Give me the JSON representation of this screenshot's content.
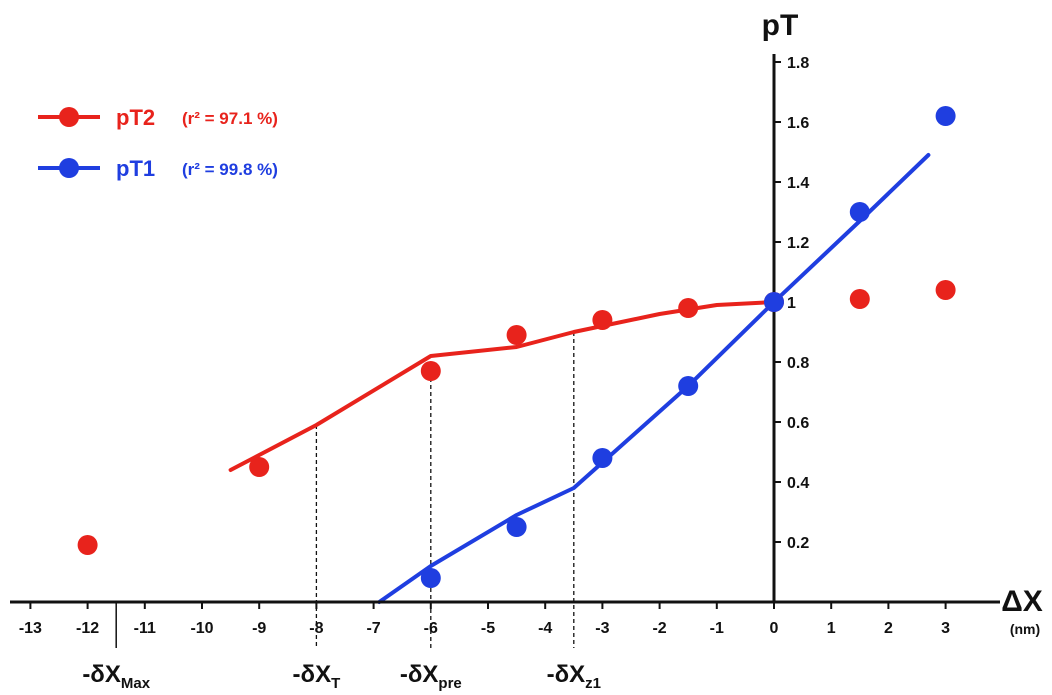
{
  "chart_data": {
    "type": "line",
    "xlabel": "ΔX",
    "xunit": "(nm)",
    "ylabel": "pT",
    "xlim": [
      -13.5,
      3.5
    ],
    "ylim": [
      0,
      1.8
    ],
    "x_ticks": [
      -13,
      -12,
      -11,
      -10,
      -9,
      -8,
      -7,
      -6,
      -5,
      -4,
      -3,
      -2,
      -1,
      0,
      1,
      2,
      3
    ],
    "x_tick_labels": [
      "-13",
      "-12",
      "-11",
      "-10",
      "-9",
      "-8",
      "-7",
      "-6",
      "-5",
      "-4",
      "-3",
      "-2",
      "-1",
      "0",
      "1",
      "2",
      "3"
    ],
    "y_ticks": [
      0.2,
      0.4,
      0.6,
      0.8,
      1.0,
      1.2,
      1.4,
      1.6,
      1.8
    ],
    "y_tick_labels": [
      "0.2",
      "0.4",
      "0.6",
      "0.8",
      "1",
      "1.2",
      "1.4",
      "1.6",
      "1.8"
    ],
    "grid": false,
    "legend_position": "top-left",
    "series": [
      {
        "name": "pT2",
        "r2_label": "(r² = 97.1 %)",
        "color": "#e8231c",
        "points": [
          [
            -12,
            0.19
          ],
          [
            -9,
            0.45
          ],
          [
            -6,
            0.77
          ],
          [
            -4.5,
            0.89
          ],
          [
            -3,
            0.94
          ],
          [
            -1.5,
            0.98
          ],
          [
            0,
            1.0
          ],
          [
            1.5,
            1.01
          ],
          [
            3,
            1.04
          ]
        ],
        "fit": [
          [
            -9.5,
            0.44
          ],
          [
            -8,
            0.59
          ],
          [
            -6,
            0.82
          ],
          [
            -4.5,
            0.85
          ],
          [
            -3.5,
            0.9
          ],
          [
            -2,
            0.96
          ],
          [
            -1,
            0.99
          ],
          [
            0,
            1.0
          ]
        ]
      },
      {
        "name": "pT1",
        "r2_label": "(r² = 99.8 %)",
        "color": "#1f3ee0",
        "points": [
          [
            -6,
            0.08
          ],
          [
            -4.5,
            0.25
          ],
          [
            -3,
            0.48
          ],
          [
            -1.5,
            0.72
          ],
          [
            0,
            1.0
          ],
          [
            1.5,
            1.3
          ],
          [
            3,
            1.62
          ]
        ],
        "fit": [
          [
            -6.9,
            0.0
          ],
          [
            -6,
            0.12
          ],
          [
            -4.5,
            0.29
          ],
          [
            -3.5,
            0.38
          ],
          [
            -2.5,
            0.55
          ],
          [
            -1.5,
            0.72
          ],
          [
            0,
            1.0
          ],
          [
            1.5,
            1.27
          ],
          [
            2.7,
            1.49
          ]
        ]
      }
    ],
    "markers": [
      {
        "main": "-δX",
        "sub": "Max",
        "x": -11.5,
        "y": null
      },
      {
        "main": "-δX",
        "sub": "T",
        "x": -8,
        "y": 0.59
      },
      {
        "main": "-δX",
        "sub": "pre",
        "x": -6,
        "y": 0.77
      },
      {
        "main": "-δX",
        "sub": "z1",
        "x": -3.5,
        "y": 0.9
      }
    ]
  }
}
